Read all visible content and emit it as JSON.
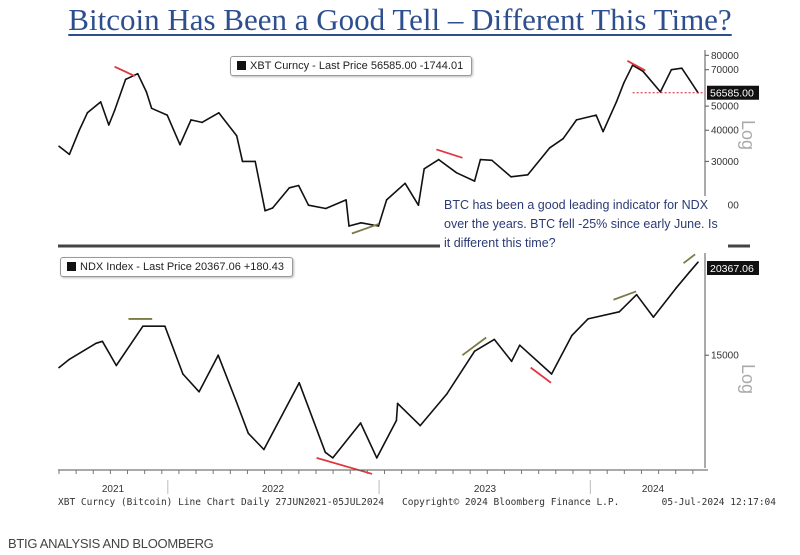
{
  "title": "Bitcoin Has Been a Good Tell – Different This Time?",
  "source": "BTIG ANALYSIS AND BLOOMBERG",
  "annotation": "BTC has been a good leading indicator for NDX over the years. BTC fell -25% since early June. Is it different this time?",
  "footer": {
    "left": "XBT Curncy (Bitcoin) Line Chart  Daily 27JUN2021-05JUL2024",
    "center": "Copyright© 2024 Bloomberg Finance L.P.",
    "right": "05-Jul-2024 12:17:04"
  },
  "colors": {
    "line": "#111111",
    "bearish_mark": "#e0383e",
    "bullish_mark": "#7c7a45",
    "title": "#2e4f8f",
    "last_price_line": "#d42030"
  },
  "chart_data": [
    {
      "type": "line",
      "legend": {
        "swatch": "■",
        "label": "XBT Curncy - Last Price 56585.00  -1744.01"
      },
      "scale": "log",
      "scale_label": "Log",
      "yticks": [
        80000,
        70000,
        50000,
        40000,
        30000,
        20000
      ],
      "ylim": [
        14500,
        84000
      ],
      "last_price": "56585.00",
      "last_value": 56585,
      "x": [
        "2021-06-27",
        "2021-07-15",
        "2021-08-01",
        "2021-08-15",
        "2021-09-07",
        "2021-09-21",
        "2021-10-01",
        "2021-10-20",
        "2021-11-10",
        "2021-11-25",
        "2021-12-04",
        "2021-12-31",
        "2022-01-22",
        "2022-02-10",
        "2022-03-01",
        "2022-03-30",
        "2022-04-30",
        "2022-05-10",
        "2022-06-01",
        "2022-06-18",
        "2022-07-01",
        "2022-07-30",
        "2022-08-15",
        "2022-09-01",
        "2022-10-01",
        "2022-11-05",
        "2022-11-10",
        "2022-12-01",
        "2022-12-31",
        "2023-01-14",
        "2023-02-15",
        "2023-03-10",
        "2023-03-20",
        "2023-04-14",
        "2023-05-15",
        "2023-06-15",
        "2023-06-25",
        "2023-07-15",
        "2023-08-17",
        "2023-09-15",
        "2023-10-23",
        "2023-11-15",
        "2023-12-08",
        "2024-01-11",
        "2024-01-23",
        "2024-02-15",
        "2024-02-28",
        "2024-03-14",
        "2024-04-01",
        "2024-05-01",
        "2024-05-20",
        "2024-06-07",
        "2024-06-20",
        "2024-07-05"
      ],
      "values": [
        34500,
        32000,
        40000,
        47000,
        52000,
        42000,
        48000,
        64000,
        67500,
        57000,
        49000,
        46000,
        35000,
        44000,
        43000,
        47000,
        38000,
        30000,
        30000,
        19000,
        19500,
        23500,
        24000,
        20000,
        19400,
        21000,
        16500,
        17000,
        16500,
        21000,
        24500,
        20000,
        28000,
        30500,
        27000,
        25000,
        30500,
        30300,
        26000,
        26500,
        34000,
        37000,
        44000,
        46000,
        39500,
        52000,
        62000,
        73000,
        69000,
        57000,
        70000,
        71000,
        64000,
        56585
      ],
      "marks": [
        {
          "kind": "bearish",
          "from": [
            "2021-10-01",
            72000
          ],
          "to": [
            "2021-11-05",
            66000
          ]
        },
        {
          "kind": "bullish",
          "from": [
            "2022-11-15",
            15400
          ],
          "to": [
            "2022-12-31",
            16800
          ]
        },
        {
          "kind": "bearish",
          "from": [
            "2023-04-10",
            33500
          ],
          "to": [
            "2023-05-25",
            31000
          ]
        },
        {
          "kind": "bearish",
          "from": [
            "2024-03-05",
            76000
          ],
          "to": [
            "2024-04-05",
            69500
          ]
        }
      ]
    },
    {
      "type": "line",
      "legend": {
        "swatch": "■",
        "label": "NDX Index - Last Price 20367.06  +180.43"
      },
      "scale": "log",
      "scale_label": "Log",
      "yticks": [
        15000
      ],
      "ylim": [
        10350,
        21200
      ],
      "last_price": "20367.06",
      "xticks": [
        "2021",
        "2022",
        "2023",
        "2024"
      ],
      "x": [
        "2021-06-27",
        "2021-07-15",
        "2021-08-30",
        "2021-09-10",
        "2021-10-04",
        "2021-11-19",
        "2021-12-27",
        "2022-01-27",
        "2022-02-24",
        "2022-03-29",
        "2022-04-29",
        "2022-05-20",
        "2022-06-16",
        "2022-08-16",
        "2022-09-30",
        "2022-10-13",
        "2022-11-30",
        "2022-12-28",
        "2023-01-31",
        "2023-02-02",
        "2023-03-13",
        "2023-04-28",
        "2023-06-15",
        "2023-07-19",
        "2023-08-18",
        "2023-09-01",
        "2023-10-26",
        "2023-11-30",
        "2023-12-28",
        "2024-02-20",
        "2024-03-21",
        "2024-04-19",
        "2024-05-28",
        "2024-06-20",
        "2024-07-05"
      ],
      "values": [
        14400,
        14800,
        15600,
        15700,
        14500,
        16500,
        16500,
        14100,
        13300,
        15000,
        12900,
        11600,
        11000,
        13700,
        10900,
        10700,
        12000,
        10700,
        12100,
        12800,
        11900,
        13200,
        15200,
        15800,
        14700,
        15500,
        14100,
        16000,
        16900,
        17300,
        18300,
        17000,
        18700,
        19700,
        20367
      ],
      "marks": [
        {
          "kind": "bullish",
          "from": [
            "2021-10-25",
            16900
          ],
          "to": [
            "2021-12-05",
            16900
          ]
        },
        {
          "kind": "bearish",
          "from": [
            "2022-09-15",
            10700
          ],
          "to": [
            "2022-12-20",
            10150
          ]
        },
        {
          "kind": "bullish",
          "from": [
            "2023-05-25",
            15000
          ],
          "to": [
            "2023-07-05",
            15900
          ]
        },
        {
          "kind": "bearish",
          "from": [
            "2023-09-20",
            14400
          ],
          "to": [
            "2023-10-25",
            13700
          ]
        },
        {
          "kind": "bullish",
          "from": [
            "2024-02-10",
            18000
          ],
          "to": [
            "2024-03-20",
            18500
          ]
        },
        {
          "kind": "bullish",
          "from": [
            "2024-06-10",
            20300
          ],
          "to": [
            "2024-06-30",
            20900
          ]
        }
      ]
    }
  ]
}
